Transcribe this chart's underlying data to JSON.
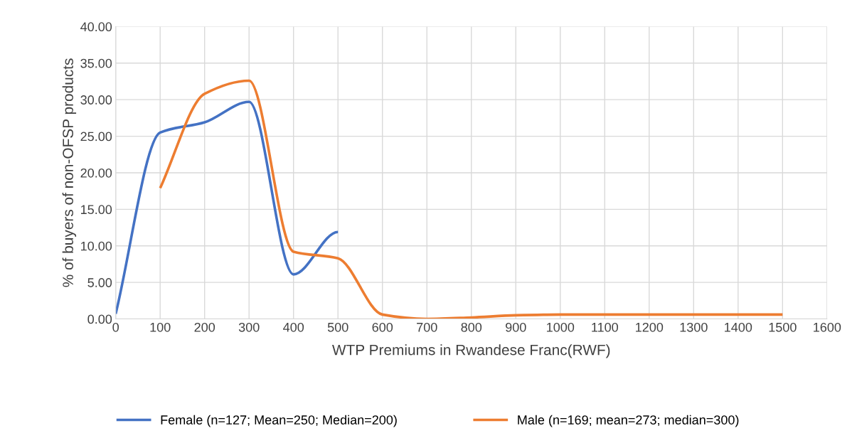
{
  "chart_data": {
    "type": "line",
    "xlabel": "WTP Premiums in Rwandese Franc(RWF)",
    "ylabel": "% of buyers of non-OFSP products",
    "series": [
      {
        "name": "Female (n=127; Mean=250; Median=200)",
        "color": "#4472c4",
        "x": [
          0,
          100,
          200,
          300,
          400,
          500
        ],
        "values": [
          0.7,
          25.5,
          26.9,
          29.7,
          6.1,
          11.9
        ]
      },
      {
        "name": "Male (n=169; mean=273; median=300)",
        "color": "#ed7d31",
        "x": [
          100,
          200,
          300,
          400,
          500,
          600,
          700,
          800,
          900,
          1000,
          1100,
          1200,
          1300,
          1400,
          1500
        ],
        "values": [
          17.9,
          30.8,
          32.6,
          9.2,
          8.3,
          0.6,
          0,
          0.2,
          0.5,
          0.6,
          0.6,
          0.6,
          0.6,
          0.6,
          0.6
        ]
      }
    ],
    "xlim": [
      0,
      1600
    ],
    "xticks": [
      0,
      100,
      200,
      300,
      400,
      500,
      600,
      700,
      800,
      900,
      1000,
      1100,
      1200,
      1300,
      1400,
      1500,
      1600
    ],
    "ylim": [
      0,
      40
    ],
    "yticks": [
      {
        "value": 0,
        "label": "0.00"
      },
      {
        "value": 5,
        "label": "5.00"
      },
      {
        "value": 10,
        "label": "10.00"
      },
      {
        "value": 15,
        "label": "15.00"
      },
      {
        "value": 20,
        "label": "20.00"
      },
      {
        "value": 25,
        "label": "25.00"
      },
      {
        "value": 30,
        "label": "30.00"
      },
      {
        "value": 35,
        "label": "35.00"
      },
      {
        "value": 40,
        "label": "40.00"
      }
    ],
    "grid": true,
    "legend": "bottom",
    "marker": "none",
    "line_style": "solid"
  }
}
